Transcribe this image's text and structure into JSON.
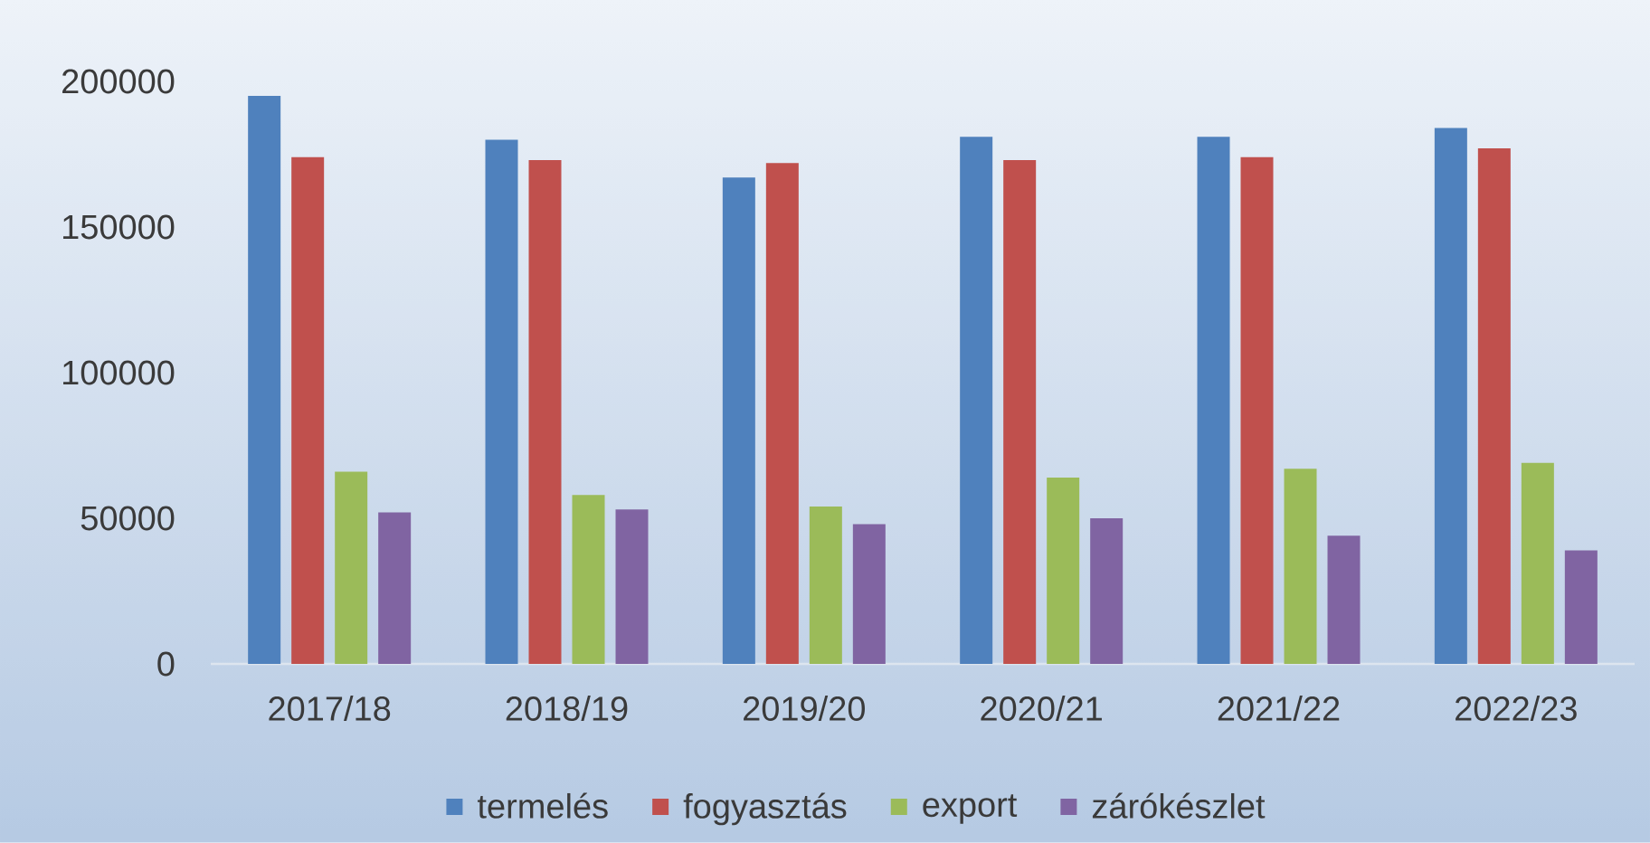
{
  "chart_data": {
    "type": "bar",
    "categories": [
      "2017/18",
      "2018/19",
      "2019/20",
      "2020/21",
      "2021/22",
      "2022/23"
    ],
    "series": [
      {
        "name": "termelés",
        "color": "#4f81bd",
        "values": [
          195000,
          180000,
          167000,
          181000,
          181000,
          184000
        ]
      },
      {
        "name": "fogyasztás",
        "color": "#c0504d",
        "values": [
          174000,
          173000,
          172000,
          173000,
          174000,
          177000
        ]
      },
      {
        "name": "export",
        "color": "#9bbb59",
        "values": [
          66000,
          58000,
          54000,
          64000,
          67000,
          69000
        ]
      },
      {
        "name": "zárókészlet",
        "color": "#8064a2",
        "values": [
          52000,
          53000,
          48000,
          50000,
          44000,
          39000
        ]
      }
    ],
    "ylim": [
      0,
      200000
    ],
    "yticks": [
      0,
      50000,
      100000,
      150000,
      200000
    ],
    "legend": "bottom"
  }
}
